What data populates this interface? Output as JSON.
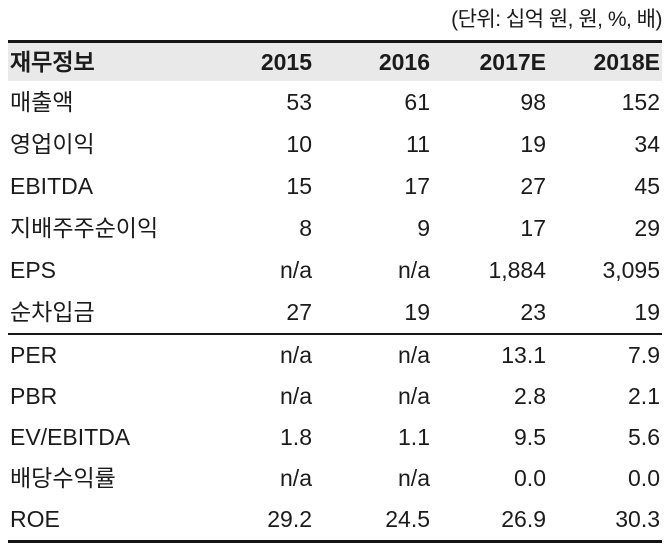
{
  "unit_note": "(단위: 십억 원, 원, %, 배)",
  "table": {
    "headers": [
      "재무정보",
      "2015",
      "2016",
      "2017E",
      "2018E"
    ],
    "rows": [
      {
        "label": "매출액",
        "values": [
          "53",
          "61",
          "98",
          "152"
        ]
      },
      {
        "label": "영업이익",
        "values": [
          "10",
          "11",
          "19",
          "34"
        ]
      },
      {
        "label": "EBITDA",
        "values": [
          "15",
          "17",
          "27",
          "45"
        ]
      },
      {
        "label": "지배주주순이익",
        "values": [
          "8",
          "9",
          "17",
          "29"
        ]
      },
      {
        "label": "EPS",
        "values": [
          "n/a",
          "n/a",
          "1,884",
          "3,095"
        ]
      },
      {
        "label": "순차입금",
        "values": [
          "27",
          "19",
          "23",
          "19"
        ]
      },
      {
        "label": "PER",
        "values": [
          "n/a",
          "n/a",
          "13.1",
          "7.9"
        ]
      },
      {
        "label": "PBR",
        "values": [
          "n/a",
          "n/a",
          "2.8",
          "2.1"
        ]
      },
      {
        "label": "EV/EBITDA",
        "values": [
          "1.8",
          "1.1",
          "9.5",
          "5.6"
        ]
      },
      {
        "label": "배당수익률",
        "values": [
          "n/a",
          "n/a",
          "0.0",
          "0.0"
        ]
      },
      {
        "label": "ROE",
        "values": [
          "29.2",
          "24.5",
          "26.9",
          "30.3"
        ]
      }
    ]
  },
  "colors": {
    "header_background": "#e9e9e9",
    "rule": "#151515",
    "text": "#1b1b1b"
  }
}
